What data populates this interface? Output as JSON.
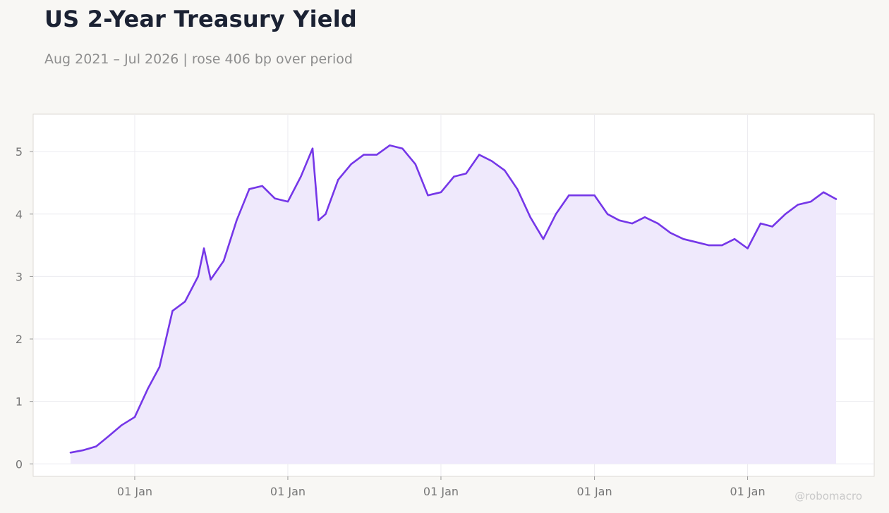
{
  "header": {
    "title": "US 2-Year Treasury Yield",
    "subtitle": "Aug 2021 – Jul 2026 | rose 406 bp over period"
  },
  "footer": {
    "watermark": "@robomacro"
  },
  "colors": {
    "line": "#7537e8",
    "fill": "#efe9fc",
    "panel": "#ffffff",
    "background": "#f8f7f4",
    "grid": "#ecebf0",
    "title": "#1b2233"
  },
  "chart_data": {
    "type": "line",
    "title": "US 2-Year Treasury Yield",
    "subtitle": "Aug 2021 – Jul 2026 | rose 406 bp over period",
    "xlabel": "",
    "ylabel": "",
    "xlim": [
      "2021-08-01",
      "2026-07-31"
    ],
    "ylim": [
      -0.2,
      5.6
    ],
    "x_tick_dates": [
      "2022-01-01",
      "2023-01-01",
      "2024-01-01",
      "2025-01-01",
      "2026-01-01"
    ],
    "x_tick_labels": [
      "01 Jan",
      "01 Jan",
      "01 Jan",
      "01 Jan",
      "01 Jan"
    ],
    "y_ticks": [
      0,
      1,
      2,
      3,
      4,
      5
    ],
    "grid": true,
    "area_fill": true,
    "legend": "none",
    "series": [
      {
        "x": [
          "2021-08-01",
          "2021-09-01",
          "2021-10-01",
          "2021-11-01",
          "2021-12-01",
          "2022-01-01",
          "2022-02-01",
          "2022-03-01",
          "2022-04-01",
          "2022-05-01",
          "2022-06-01",
          "2022-06-15",
          "2022-07-01",
          "2022-08-01",
          "2022-09-01",
          "2022-10-01",
          "2022-11-01",
          "2022-12-01",
          "2023-01-01",
          "2023-02-01",
          "2023-03-01",
          "2023-03-15",
          "2023-04-01",
          "2023-05-01",
          "2023-06-01",
          "2023-07-01",
          "2023-08-01",
          "2023-09-01",
          "2023-10-01",
          "2023-11-01",
          "2023-12-01",
          "2024-01-01",
          "2024-02-01",
          "2024-03-01",
          "2024-04-01",
          "2024-05-01",
          "2024-06-01",
          "2024-07-01",
          "2024-08-01",
          "2024-09-01",
          "2024-10-01",
          "2024-11-01",
          "2024-12-01",
          "2025-01-01",
          "2025-02-01",
          "2025-03-01",
          "2025-04-01",
          "2025-05-01",
          "2025-06-01",
          "2025-07-01",
          "2025-08-01",
          "2025-09-01",
          "2025-10-01",
          "2025-11-01",
          "2025-12-01",
          "2026-01-01",
          "2026-02-01",
          "2026-03-01",
          "2026-04-01",
          "2026-05-01",
          "2026-06-01",
          "2026-07-01",
          "2026-07-31"
        ],
        "y": [
          0.18,
          0.22,
          0.28,
          0.45,
          0.62,
          0.75,
          1.2,
          1.55,
          2.45,
          2.6,
          3.0,
          3.45,
          2.95,
          3.25,
          3.9,
          4.4,
          4.45,
          4.25,
          4.2,
          4.6,
          5.05,
          3.9,
          4.0,
          4.55,
          4.8,
          4.95,
          4.95,
          5.1,
          5.05,
          4.8,
          4.3,
          4.35,
          4.6,
          4.65,
          4.95,
          4.85,
          4.7,
          4.4,
          3.95,
          3.6,
          4.0,
          4.3,
          4.3,
          4.3,
          4.0,
          3.9,
          3.85,
          3.95,
          3.85,
          3.7,
          3.6,
          3.55,
          3.5,
          3.5,
          3.6,
          3.45,
          3.85,
          3.8,
          4.0,
          4.15,
          4.2,
          4.35,
          4.24
        ]
      }
    ]
  }
}
